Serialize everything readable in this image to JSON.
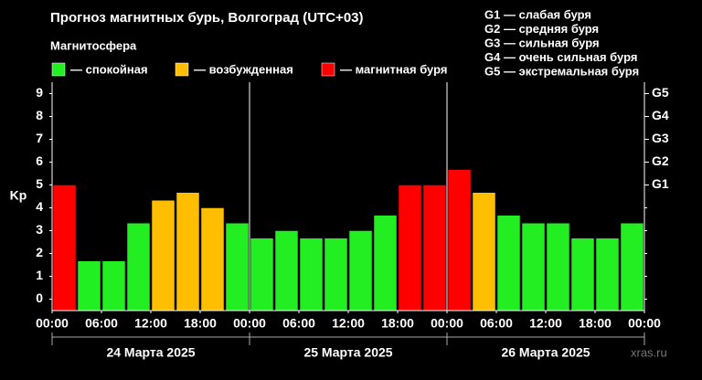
{
  "chart_data": {
    "type": "bar",
    "title": "Прогноз магнитных бурь, Волгоград (UTC+03)",
    "subtitle": "Магнитосфера",
    "legend": [
      {
        "label": "— спокойная",
        "color": "#22ee22"
      },
      {
        "label": "— возбужденная",
        "color": "#ffbf00"
      },
      {
        "label": "— магнитная буря",
        "color": "#ff0000"
      }
    ],
    "notes": [
      "G1 — слабая буря",
      "G2 — средняя буря",
      "G3 — сильная буря",
      "G4 — очень сильная буря",
      "G5 — экстремальная буря"
    ],
    "ylabel": "Kp",
    "x": [
      0,
      3,
      6,
      9,
      12,
      15,
      18,
      21,
      24,
      27,
      30,
      33,
      36,
      39,
      42,
      45,
      48,
      51,
      54,
      57,
      60,
      63,
      66,
      69
    ],
    "values": [
      5.0,
      1.67,
      1.67,
      3.33,
      4.33,
      4.67,
      4.0,
      3.33,
      2.67,
      3.0,
      2.67,
      2.67,
      3.0,
      3.67,
      5.0,
      5.0,
      5.67,
      4.67,
      3.67,
      3.33,
      3.33,
      2.67,
      2.67,
      3.33
    ],
    "colors": [
      "#ff0000",
      "#22ee22",
      "#22ee22",
      "#22ee22",
      "#ffbf00",
      "#ffbf00",
      "#ffbf00",
      "#22ee22",
      "#22ee22",
      "#22ee22",
      "#22ee22",
      "#22ee22",
      "#22ee22",
      "#22ee22",
      "#ff0000",
      "#ff0000",
      "#ff0000",
      "#ffbf00",
      "#22ee22",
      "#22ee22",
      "#22ee22",
      "#22ee22",
      "#22ee22",
      "#22ee22"
    ],
    "xlim": [
      0,
      72
    ],
    "xticks": [
      {
        "value": 0,
        "label": "00:00"
      },
      {
        "value": 6,
        "label": "06:00"
      },
      {
        "value": 12,
        "label": "12:00"
      },
      {
        "value": 18,
        "label": "18:00"
      },
      {
        "value": 24,
        "label": "00:00"
      },
      {
        "value": 30,
        "label": "06:00"
      },
      {
        "value": 36,
        "label": "12:00"
      },
      {
        "value": 42,
        "label": "18:00"
      },
      {
        "value": 48,
        "label": "00:00"
      },
      {
        "value": 54,
        "label": "06:00"
      },
      {
        "value": 60,
        "label": "12:00"
      },
      {
        "value": 66,
        "label": "18:00"
      },
      {
        "value": 72,
        "label": "00:00"
      }
    ],
    "days": [
      "24 Марта 2025",
      "25 Марта 2025",
      "26 Марта 2025"
    ],
    "ylim": [
      -0.5,
      9.5
    ],
    "yticks": [
      0,
      1,
      2,
      3,
      4,
      5,
      6,
      7,
      8,
      9
    ],
    "y2lim": [
      -0.5,
      9.5
    ],
    "y2ticks": [
      {
        "value": 5,
        "label": "G1"
      },
      {
        "value": 6,
        "label": "G2"
      },
      {
        "value": 7,
        "label": "G3"
      },
      {
        "value": 8,
        "label": "G4"
      },
      {
        "value": 9,
        "label": "G5"
      }
    ],
    "watermark": "xras.ru"
  }
}
